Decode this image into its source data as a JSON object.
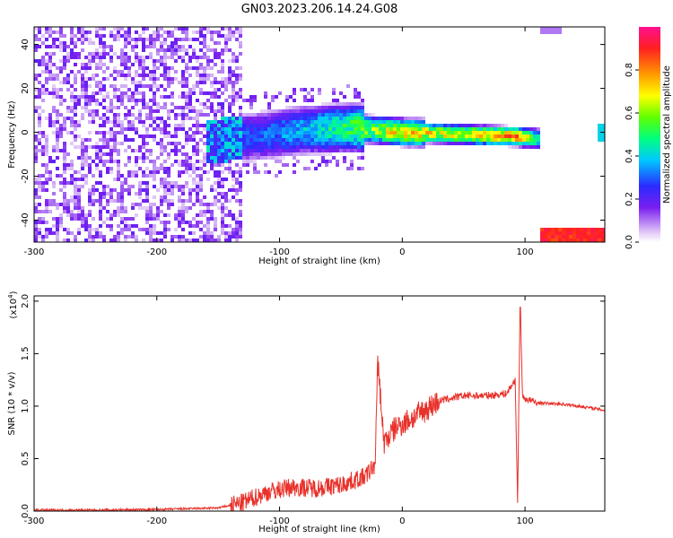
{
  "page_title": "GN03.2023.206.14.24.G08",
  "chart_data": [
    {
      "type": "heatmap",
      "title": "GN03.2023.206.14.24.G08",
      "xlabel": "Height of straight line (km)",
      "ylabel": "Frequency (Hz)",
      "xlim": [
        -300,
        165
      ],
      "ylim": [
        -50,
        48
      ],
      "x_ticks": [
        -300,
        -200,
        -100,
        0,
        100
      ],
      "y_ticks": [
        -40,
        -20,
        0,
        20,
        40
      ],
      "grid": false,
      "colorbar": {
        "label": "Normalized spectral amplitude",
        "range": [
          0.0,
          1.0
        ],
        "ticks": [
          0.0,
          0.2,
          0.4,
          0.6,
          0.8
        ],
        "colors": [
          "#e6d0f7",
          "#7a1ff0",
          "#2a2bff",
          "#00c8ff",
          "#00ff80",
          "#60ff00",
          "#ffff00",
          "#ff9900",
          "#ff2020",
          "#ff1090"
        ]
      },
      "ridge": {
        "description_points": [
          {
            "x": -155,
            "freq": -4,
            "amp": 0.35
          },
          {
            "x": -120,
            "freq": -2,
            "amp": 0.3
          },
          {
            "x": -80,
            "freq": 1,
            "amp": 0.4
          },
          {
            "x": -40,
            "freq": 2,
            "amp": 0.55
          },
          {
            "x": 0,
            "freq": 0,
            "amp": 0.75
          },
          {
            "x": 50,
            "freq": -1,
            "amp": 0.7
          },
          {
            "x": 95,
            "freq": -2,
            "amp": 0.85
          },
          {
            "x": 110,
            "freq": -3,
            "amp": 0.5
          }
        ]
      }
    },
    {
      "type": "line",
      "xlabel": "Height of straight line (km)",
      "ylabel": "SNR (10 * v/v)",
      "y_multiplier": "(x10^4)",
      "y_multiplier_base": "(x10",
      "y_multiplier_exp": "4",
      "y_multiplier_close": ")",
      "xlim": [
        -300,
        165
      ],
      "ylim": [
        0.0,
        2.05
      ],
      "x_ticks": [
        -300,
        -200,
        -100,
        0,
        100
      ],
      "y_ticks": [
        0.0,
        0.5,
        1.0,
        1.5,
        2.0
      ],
      "grid": false,
      "series": [
        {
          "color": "#e8312a",
          "x": [
            -300,
            -250,
            -200,
            -150,
            -130,
            -110,
            -90,
            -70,
            -50,
            -30,
            -22,
            -20,
            -15,
            -5,
            10,
            30,
            50,
            70,
            85,
            92,
            94,
            96,
            98,
            110,
            130,
            150,
            165
          ],
          "y": [
            0.01,
            0.01,
            0.015,
            0.03,
            0.08,
            0.18,
            0.23,
            0.22,
            0.25,
            0.33,
            0.45,
            1.45,
            0.65,
            0.8,
            0.9,
            1.05,
            1.1,
            1.1,
            1.12,
            1.25,
            0.05,
            2.05,
            1.08,
            1.03,
            1.02,
            0.99,
            0.96
          ]
        }
      ]
    }
  ]
}
